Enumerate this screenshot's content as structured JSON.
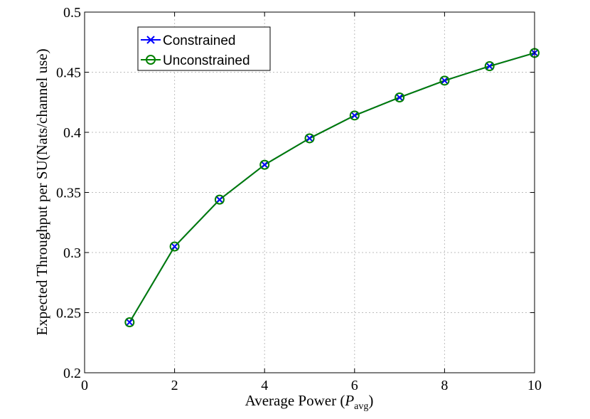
{
  "chart_data": {
    "type": "line",
    "title": "",
    "xlabel": "Average Power (",
    "xlabel_symbol": "P",
    "xlabel_subscript": "avg",
    "xlabel_close": ")",
    "ylabel": "Expected Throughput per SU(Nats/channel use)",
    "xlim": [
      0,
      10
    ],
    "ylim": [
      0.2,
      0.5
    ],
    "xticks": [
      0,
      2,
      4,
      6,
      8,
      10
    ],
    "yticks": [
      0.2,
      0.25,
      0.3,
      0.35,
      0.4,
      0.45,
      0.5
    ],
    "xtick_labels": [
      "0",
      "2",
      "4",
      "6",
      "8",
      "10"
    ],
    "ytick_labels": [
      "0.2",
      "0.25",
      "0.3",
      "0.35",
      "0.4",
      "0.45",
      "0.5"
    ],
    "grid": true,
    "legend_position": "top-left",
    "x": [
      1,
      2,
      3,
      4,
      5,
      6,
      7,
      8,
      9,
      10
    ],
    "series": [
      {
        "name": "Constrained",
        "color": "#0000ff",
        "marker": "x",
        "values": [
          0.242,
          0.305,
          0.344,
          0.373,
          0.395,
          0.414,
          0.429,
          0.443,
          0.455,
          0.466
        ]
      },
      {
        "name": "Unconstrained",
        "color": "#008000",
        "marker": "o",
        "values": [
          0.242,
          0.305,
          0.344,
          0.373,
          0.395,
          0.414,
          0.429,
          0.443,
          0.455,
          0.466
        ]
      }
    ]
  }
}
